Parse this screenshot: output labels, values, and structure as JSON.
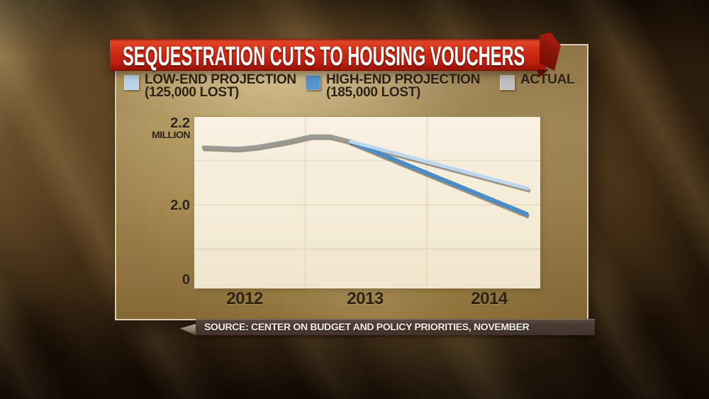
{
  "banner": {
    "title": "SEQUESTRATION CUTS TO HOUSING VOUCHERS"
  },
  "legend": {
    "items": [
      {
        "label": "LOW-END PROJECTION",
        "sublabel": "(125,000 LOST)",
        "color": "#b9d4ea"
      },
      {
        "label": "HIGH-END PROJECTION",
        "sublabel": "(185,000 LOST)",
        "color": "#5795cd"
      },
      {
        "label": "ACTUAL",
        "sublabel": "",
        "color": "#c0c1c2"
      }
    ]
  },
  "source_bar": {
    "text": "SOURCE: CENTER ON BUDGET AND POLICY PRIORITIES, NOVEMBER"
  },
  "chart_data": {
    "type": "line",
    "title": "SEQUESTRATION CUTS TO HOUSING VOUCHERS",
    "x_unit": "year",
    "y_unit": "million housing vouchers",
    "x_ticks": [
      {
        "value": 2012,
        "label": "2012"
      },
      {
        "value": 2013,
        "label": "2013"
      },
      {
        "value": 2014,
        "label": "2014"
      }
    ],
    "y_ticks": [
      {
        "value": 2.2,
        "label": "2.2",
        "unit": "MILLION"
      },
      {
        "value": 2.0,
        "label": "2.0"
      },
      {
        "value": 0,
        "label": "0"
      }
    ],
    "axis_note": "y-axis is broken between 0 and 1.9",
    "ylim": [
      1.9,
      2.2
    ],
    "x_gridlines": [
      2012.5,
      2013.5
    ],
    "y_gridlines": [
      2.1,
      2.0,
      1.9
    ],
    "grid_color": "#d6c9aa",
    "legend_position": "top",
    "series": [
      {
        "name": "ACTUAL",
        "color": "#9c9a94",
        "stroke_width": 5,
        "points": [
          [
            2011.65,
            2.13
          ],
          [
            2011.95,
            2.127
          ],
          [
            2012.1,
            2.131
          ],
          [
            2012.35,
            2.143
          ],
          [
            2012.55,
            2.155
          ],
          [
            2012.7,
            2.155
          ],
          [
            2012.86,
            2.144
          ]
        ]
      },
      {
        "name": "HIGH-END PROJECTION (185,000 LOST)",
        "color": "#4b8cc4",
        "stroke_width": 6,
        "points": [
          [
            2012.86,
            2.144
          ],
          [
            2014.33,
            1.978
          ]
        ]
      },
      {
        "name": "LOW-END PROJECTION (125,000 LOST)",
        "color": "#bdd8ee",
        "stroke_width": 5,
        "points": [
          [
            2012.86,
            2.144
          ],
          [
            2014.34,
            2.036
          ]
        ]
      }
    ]
  }
}
